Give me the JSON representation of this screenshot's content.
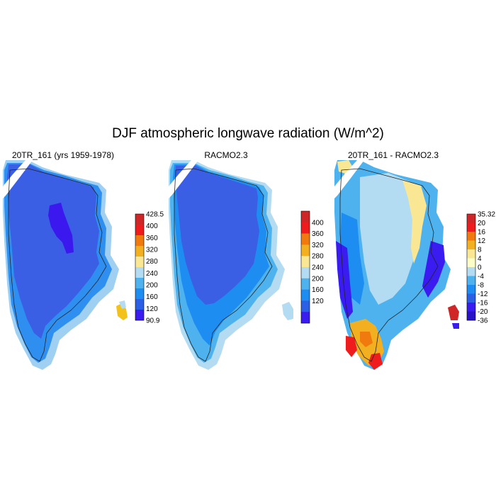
{
  "title": "DJF atmospheric longwave radiation (W/m^2)",
  "panels": [
    {
      "id": "model",
      "title": "20TR_161 (yrs 1959-1978)",
      "colorbar": {
        "labels": [
          "428.5",
          "400",
          "360",
          "320",
          "280",
          "240",
          "200",
          "160",
          "120",
          "90.9"
        ],
        "colors": [
          "#cf2727",
          "#ee1c1c",
          "#f07a0d",
          "#f2b020",
          "#f9e794",
          "#b3dcf2",
          "#4eb2ee",
          "#1e8df2",
          "#2b5fe6",
          "#3a1cf0"
        ]
      }
    },
    {
      "id": "racmo",
      "title": "RACMO2.3",
      "colorbar": {
        "labels": [
          "400",
          "360",
          "320",
          "280",
          "240",
          "200",
          "160",
          "120"
        ],
        "colors": [
          "#cf2727",
          "#ee1c1c",
          "#f07a0d",
          "#f2b020",
          "#f9e794",
          "#b3dcf2",
          "#4eb2ee",
          "#1e8df2",
          "#2b5fe6",
          "#3a1cf0"
        ]
      }
    },
    {
      "id": "diff",
      "title": "20TR_161 - RACMO2.3",
      "colorbar": {
        "labels": [
          "35.32",
          "20",
          "16",
          "12",
          "8",
          "4",
          "0",
          "-4",
          "-8",
          "-12",
          "-16",
          "-20",
          "-36"
        ],
        "colors": [
          "#cf2727",
          "#ee1c1c",
          "#f07a0d",
          "#f2b020",
          "#f9e794",
          "#fdfdc8",
          "#b3dcf2",
          "#4eb2ee",
          "#1e8df2",
          "#2b5fe6",
          "#3a1cf0",
          "#2a12c8"
        ]
      }
    }
  ]
}
